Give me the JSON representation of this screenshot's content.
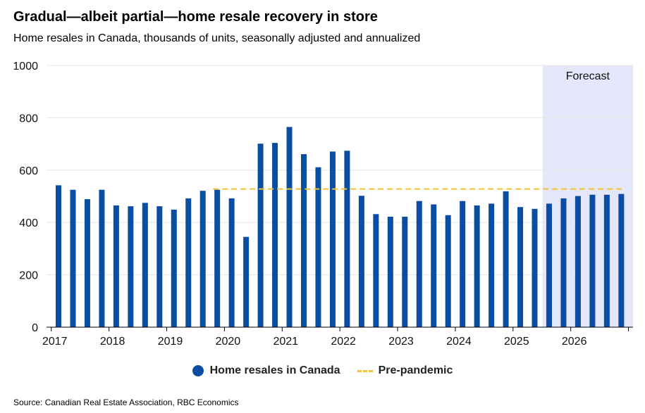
{
  "title": "Gradual—albeit partial—home resale recovery in store",
  "subtitle": "Home resales in Canada, thousands of units, seasonally adjusted and annualized",
  "source": "Source: Canadian Real Estate Association, RBC Economics",
  "colors": {
    "bar": "#0a4da2",
    "prepandemic": "#f5c232",
    "forecast_band": "#e4e6fa",
    "grid": "#e6e6e6"
  },
  "chart_data": {
    "type": "bar",
    "x_tick_labels": [
      "2017",
      "2018",
      "2019",
      "2020",
      "2021",
      "2022",
      "2023",
      "2024",
      "2025",
      "2026"
    ],
    "x_start": "2017-Q1",
    "y_tick_labels": [
      "0",
      "200",
      "400",
      "600",
      "800",
      "1000"
    ],
    "ylim": [
      0,
      1000
    ],
    "grid": true,
    "legend_position": "bottom",
    "forecast_label": "Forecast",
    "forecast_start": "2025-Q3",
    "series": [
      {
        "name": "Home resales in Canada",
        "categories": [
          "2017-Q1",
          "2017-Q2",
          "2017-Q3",
          "2017-Q4",
          "2018-Q1",
          "2018-Q2",
          "2018-Q3",
          "2018-Q4",
          "2019-Q1",
          "2019-Q2",
          "2019-Q3",
          "2019-Q4",
          "2020-Q1",
          "2020-Q2",
          "2020-Q3",
          "2020-Q4",
          "2021-Q1",
          "2021-Q2",
          "2021-Q3",
          "2021-Q4",
          "2022-Q1",
          "2022-Q2",
          "2022-Q3",
          "2022-Q4",
          "2023-Q1",
          "2023-Q2",
          "2023-Q3",
          "2023-Q4",
          "2024-Q1",
          "2024-Q2",
          "2024-Q3",
          "2024-Q4",
          "2025-Q1",
          "2025-Q2",
          "2025-Q3",
          "2025-Q4",
          "2026-Q1",
          "2026-Q2",
          "2026-Q3",
          "2026-Q4"
        ],
        "values": [
          542,
          525,
          489,
          525,
          465,
          462,
          475,
          462,
          449,
          492,
          521,
          525,
          492,
          345,
          701,
          704,
          765,
          661,
          611,
          671,
          674,
          502,
          432,
          422,
          422,
          482,
          469,
          428,
          482,
          465,
          472,
          519,
          459,
          452,
          472,
          492,
          501,
          506,
          506,
          509
        ]
      }
    ],
    "reference_line": {
      "name": "Pre-pandemic",
      "value": 528,
      "from": "2019-Q4",
      "to": "2026-Q4"
    }
  }
}
